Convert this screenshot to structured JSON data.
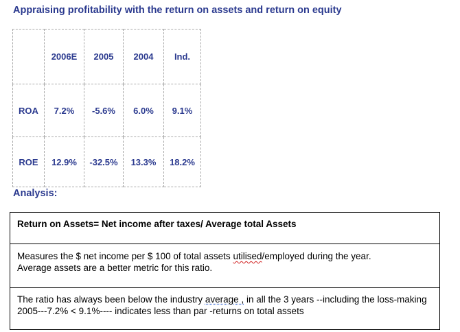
{
  "title": "Appraising profitability with the return on assets and return on equity",
  "ratios_table": {
    "columns": [
      "",
      "2006E",
      "2005",
      "2004",
      "Ind."
    ],
    "rows": [
      {
        "label": "ROA",
        "values": [
          "7.2%",
          "-5.6%",
          "6.0%",
          "9.1%"
        ]
      },
      {
        "label": "ROE",
        "values": [
          "12.9%",
          "-32.5%",
          "13.3%",
          "18.2%"
        ]
      }
    ]
  },
  "analysis": {
    "heading": "Analysis:",
    "formula": "Return on Assets= Net income after taxes/ Average total Assets",
    "description": {
      "line1_before": "Measures the $ net income per $ 100 of total assets ",
      "line1_flagged": "utilised",
      "line1_after": "/employed during the year.",
      "line2": "Average assets are a better metric for this ratio."
    },
    "comment": {
      "before": "The ratio has always been below the industry ",
      "flagged": "average ,",
      "after": " in all the 3 years --including the loss-making 2005---7.2% < 9.1%---- indicates less than par -returns on total assets"
    }
  }
}
